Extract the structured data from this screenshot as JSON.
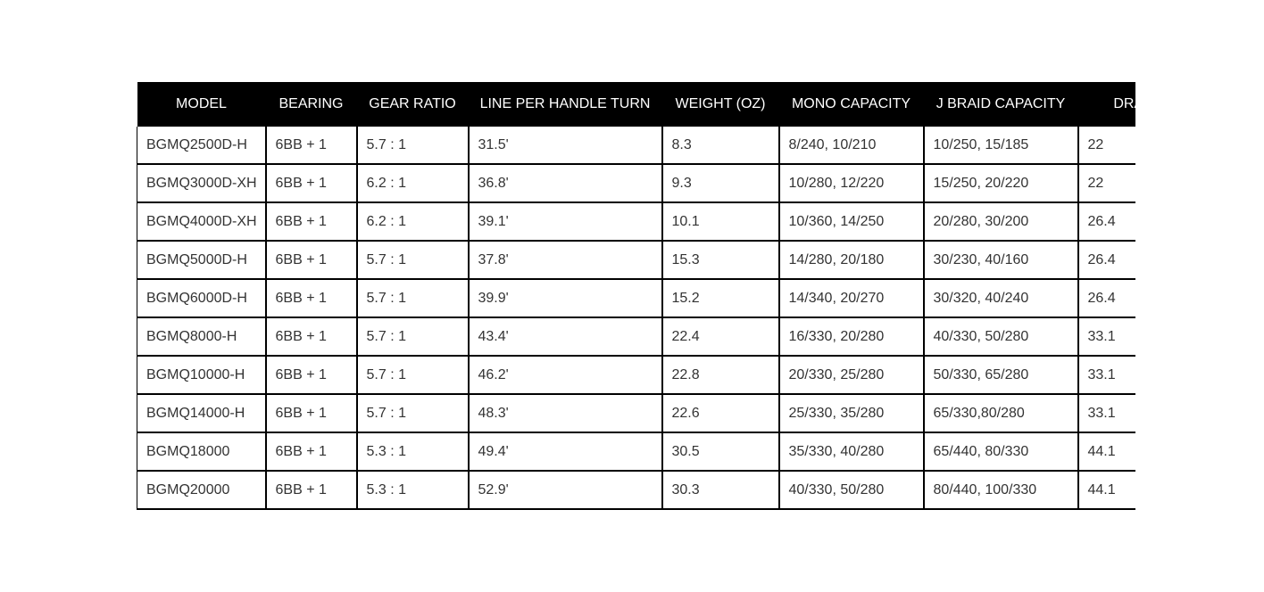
{
  "table": {
    "headers": [
      "MODEL",
      "BEARING",
      "GEAR RATIO",
      "LINE PER HANDLE TURN",
      "WEIGHT (OZ)",
      "MONO CAPACITY",
      "J BRAID CAPACITY",
      "DRAG"
    ],
    "rows": [
      [
        "BGMQ2500D-H",
        "6BB + 1",
        "5.7 : 1",
        "31.5'",
        "8.3",
        "8/240, 10/210",
        "10/250, 15/185",
        "22"
      ],
      [
        "BGMQ3000D-XH",
        "6BB + 1",
        "6.2 : 1",
        "36.8'",
        "9.3",
        "10/280, 12/220",
        "15/250, 20/220",
        "22"
      ],
      [
        "BGMQ4000D-XH",
        "6BB + 1",
        "6.2 : 1",
        "39.1'",
        "10.1",
        "10/360, 14/250",
        "20/280, 30/200",
        "26.4"
      ],
      [
        "BGMQ5000D-H",
        "6BB + 1",
        "5.7 : 1",
        "37.8'",
        "15.3",
        "14/280, 20/180",
        "30/230, 40/160",
        "26.4"
      ],
      [
        "BGMQ6000D-H",
        "6BB + 1",
        "5.7 : 1",
        "39.9'",
        "15.2",
        "14/340, 20/270",
        "30/320, 40/240",
        "26.4"
      ],
      [
        "BGMQ8000-H",
        "6BB + 1",
        "5.7 : 1",
        "43.4'",
        "22.4",
        "16/330, 20/280",
        "40/330, 50/280",
        "33.1"
      ],
      [
        "BGMQ10000-H",
        "6BB + 1",
        "5.7 : 1",
        "46.2'",
        "22.8",
        "20/330, 25/280",
        "50/330, 65/280",
        "33.1"
      ],
      [
        "BGMQ14000-H",
        "6BB + 1",
        "5.7 : 1",
        "48.3'",
        "22.6",
        "25/330, 35/280",
        "65/330,80/280",
        "33.1"
      ],
      [
        "BGMQ18000",
        "6BB + 1",
        "5.3 : 1",
        "49.4'",
        "30.5",
        "35/330, 40/280",
        "65/440, 80/330",
        "44.1"
      ],
      [
        "BGMQ20000",
        "6BB + 1",
        "5.3 : 1",
        "52.9'",
        "30.3",
        "40/330, 50/280",
        "80/440, 100/330",
        "44.1"
      ]
    ]
  }
}
